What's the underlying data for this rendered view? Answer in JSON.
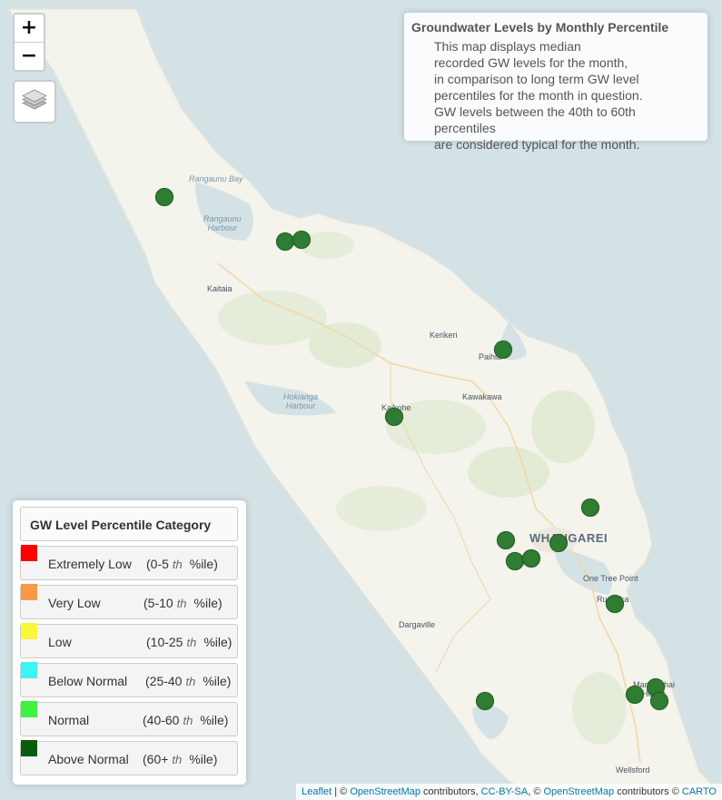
{
  "controls": {
    "zoom_in": "+",
    "zoom_out": "−",
    "layers_icon": "layers-icon"
  },
  "info_panel": {
    "title": "Groundwater Levels by Monthly Percentile",
    "lines": [
      "This map displays median",
      "recorded GW levels for the month,",
      "in comparison to long term GW level",
      "percentiles for the month in question.",
      "GW levels between the 40th to 60th percentiles",
      "are considered typical for the month."
    ]
  },
  "legend": {
    "title": "GW Level Percentile Category",
    "items": [
      {
        "label": "Extremely Low",
        "range_start": "(0-5",
        "th": "th",
        "range_end": "%ile)",
        "color": "#ff0000"
      },
      {
        "label": "Very Low",
        "range_start": "(5-10",
        "th": "th",
        "range_end": "%ile)",
        "color": "#f79a46"
      },
      {
        "label": "Low",
        "range_start": "(10-25",
        "th": "th",
        "range_end": "%ile)",
        "color": "#f7f73c"
      },
      {
        "label": "Below Normal",
        "range_start": "(25-40",
        "th": "th",
        "range_end": "%ile)",
        "color": "#3ff2f4"
      },
      {
        "label": "Normal",
        "range_start": "(40-60",
        "th": "th",
        "range_end": "%ile)",
        "color": "#3ef23e"
      },
      {
        "label": "Above Normal",
        "range_start": "(60+",
        "th": "th",
        "range_end": "%ile)",
        "color": "#0a5c0a"
      }
    ]
  },
  "map": {
    "water_labels": [
      {
        "text": "Rangaunu Bay"
      },
      {
        "text": "Rangaunu\nHarbour"
      },
      {
        "text": "Hokianga\nHarbour"
      }
    ],
    "town_labels": [
      "Kaitaia",
      "Kerikeri",
      "Paihia",
      "Kaikohe",
      "Kawakawa",
      "One Tree Point",
      "Ruakaka",
      "Dargaville",
      "Mangawhai\nHeads",
      "Wellsford"
    ],
    "city_label": "WHANGAREI",
    "marker_color": "#2e7d32",
    "marker_category": "Above Normal",
    "sites": 18
  },
  "attribution": {
    "leaflet": "Leaflet",
    "sep1": " | © ",
    "osm1": "OpenStreetMap",
    "t1": " contributors, ",
    "ccbysa": "CC-BY-SA",
    "t2": ", © ",
    "osm2": "OpenStreetMap",
    "t3": " contributors © ",
    "carto": "CARTO"
  }
}
